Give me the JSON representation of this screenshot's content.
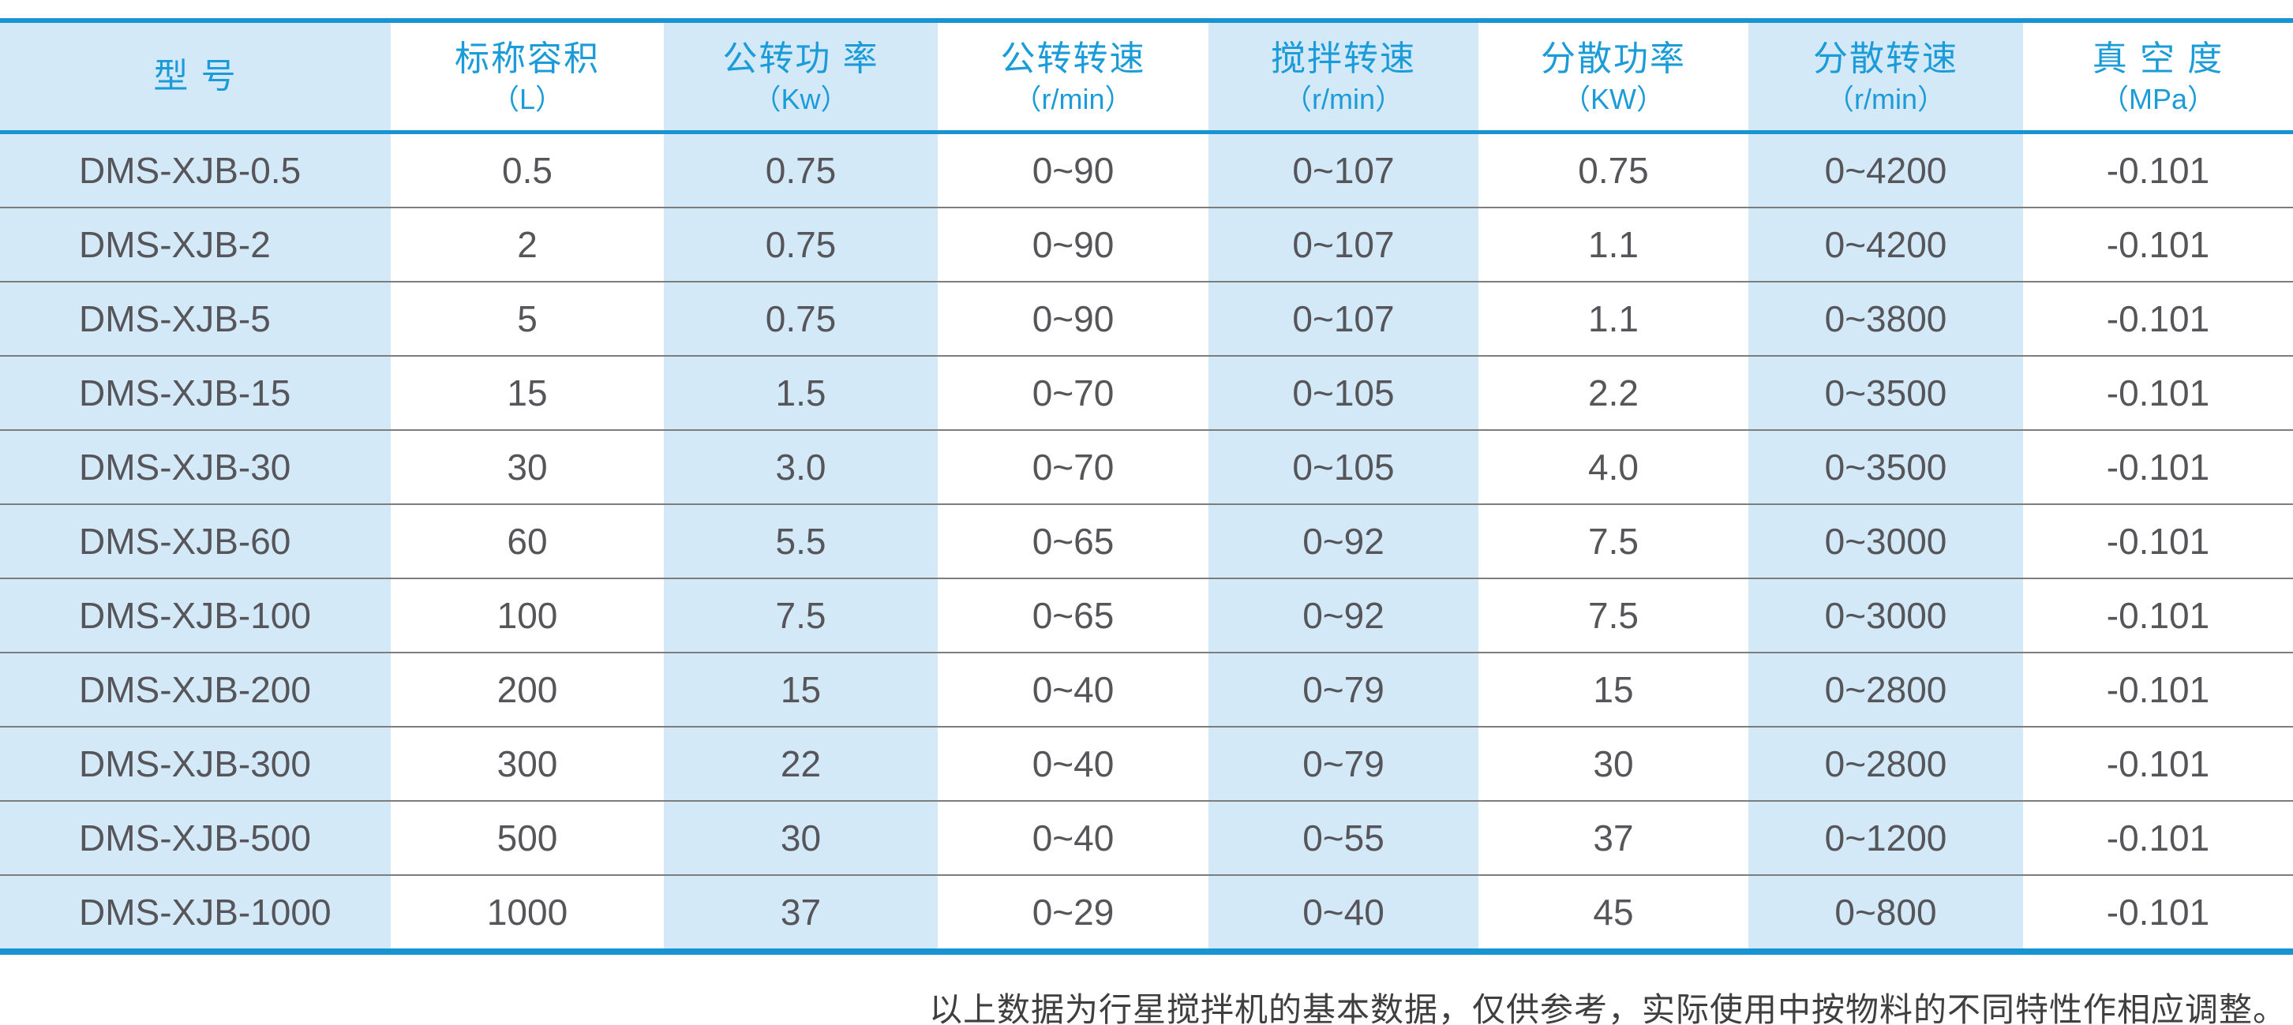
{
  "table": {
    "columns": [
      {
        "label": "型  号",
        "unit": "",
        "shaded": true
      },
      {
        "label": "标称容积",
        "unit": "（L）",
        "shaded": false
      },
      {
        "label": "公转功 率",
        "unit": "（Kw）",
        "shaded": true
      },
      {
        "label": "公转转速",
        "unit": "（r/min）",
        "shaded": false
      },
      {
        "label": "搅拌转速",
        "unit": "（r/min）",
        "shaded": true
      },
      {
        "label": "分散功率",
        "unit": "（KW）",
        "shaded": false
      },
      {
        "label": "分散转速",
        "unit": "（r/min）",
        "shaded": true
      },
      {
        "label": "真 空 度",
        "unit": "（MPa）",
        "shaded": false
      }
    ],
    "rows": [
      [
        "DMS-XJB-0.5",
        "0.5",
        "0.75",
        "0~90",
        "0~107",
        "0.75",
        "0~4200",
        "-0.101"
      ],
      [
        "DMS-XJB-2",
        "2",
        "0.75",
        "0~90",
        "0~107",
        "1.1",
        "0~4200",
        "-0.101"
      ],
      [
        "DMS-XJB-5",
        "5",
        "0.75",
        "0~90",
        "0~107",
        "1.1",
        "0~3800",
        "-0.101"
      ],
      [
        "DMS-XJB-15",
        "15",
        "1.5",
        "0~70",
        "0~105",
        "2.2",
        "0~3500",
        "-0.101"
      ],
      [
        "DMS-XJB-30",
        "30",
        "3.0",
        "0~70",
        "0~105",
        "4.0",
        "0~3500",
        "-0.101"
      ],
      [
        "DMS-XJB-60",
        "60",
        "5.5",
        "0~65",
        "0~92",
        "7.5",
        "0~3000",
        "-0.101"
      ],
      [
        "DMS-XJB-100",
        "100",
        "7.5",
        "0~65",
        "0~92",
        "7.5",
        "0~3000",
        "-0.101"
      ],
      [
        "DMS-XJB-200",
        "200",
        "15",
        "0~40",
        "0~79",
        "15",
        "0~2800",
        "-0.101"
      ],
      [
        "DMS-XJB-300",
        "300",
        "22",
        "0~40",
        "0~79",
        "30",
        "0~2800",
        "-0.101"
      ],
      [
        "DMS-XJB-500",
        "500",
        "30",
        "0~40",
        "0~55",
        "37",
        "0~1200",
        "-0.101"
      ],
      [
        "DMS-XJB-1000",
        "1000",
        "37",
        "0~29",
        "0~40",
        "45",
        "0~800",
        "-0.101"
      ]
    ],
    "footnote": "以上数据为行星搅拌机的基本数据，仅供参考，实际使用中按物料的不同特性作相应调整。"
  },
  "colors": {
    "accent_blue": "#1894d3",
    "header_text_blue": "#1b9cd8",
    "shaded_cell_blue": "#d4e9f8",
    "row_separator_gray": "#7d7d7d",
    "cell_text_gray": "#55555a",
    "footnote_text": "#3f3f3f"
  }
}
